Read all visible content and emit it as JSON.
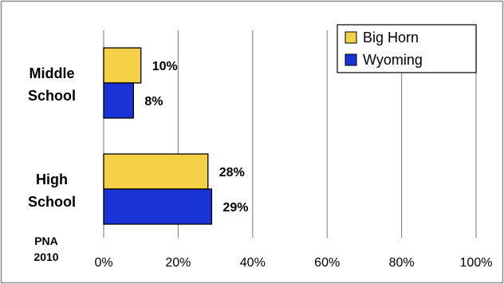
{
  "chart_data": {
    "type": "bar",
    "orientation": "horizontal",
    "categories": [
      "Middle School",
      "High School"
    ],
    "category_label_lines": [
      [
        "Middle",
        "School"
      ],
      [
        "High",
        "School"
      ]
    ],
    "series": [
      {
        "name": "Big Horn",
        "color": "#F5CF45",
        "values": [
          10,
          28
        ],
        "labels": [
          "10%",
          "28%"
        ]
      },
      {
        "name": "Wyoming",
        "color": "#1A33D6",
        "values": [
          8,
          29
        ],
        "labels": [
          "8%",
          "29%"
        ]
      }
    ],
    "xlim": [
      0,
      100
    ],
    "x_ticks": [
      0,
      20,
      40,
      60,
      80,
      100
    ],
    "x_tick_labels": [
      "0%",
      "20%",
      "40%",
      "60%",
      "80%",
      "100%"
    ],
    "grid": "vertical",
    "legend_position": "top-right",
    "annotation": [
      "PNA",
      "2010"
    ]
  }
}
